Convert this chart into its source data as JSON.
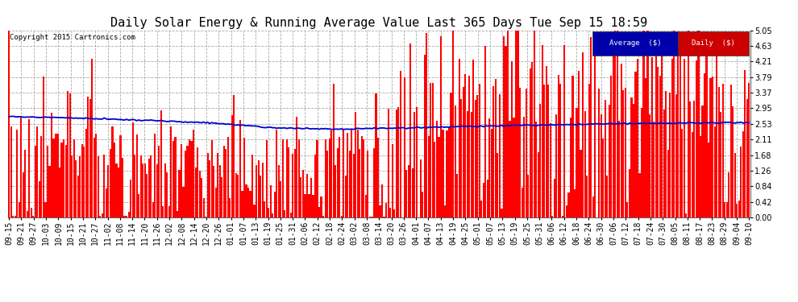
{
  "title": "Daily Solar Energy & Running Average Value Last 365 Days Tue Sep 15 18:59",
  "copyright": "Copyright 2015 Cartronics.com",
  "legend_avg": "Average  ($)",
  "legend_daily": "Daily  ($)",
  "ylim": [
    0.0,
    5.05
  ],
  "yticks": [
    0.0,
    0.42,
    0.84,
    1.26,
    1.68,
    2.11,
    2.53,
    2.95,
    3.37,
    3.79,
    4.21,
    4.63,
    5.05
  ],
  "bar_color": "#ff0000",
  "avg_line_color": "#0000cd",
  "bg_color": "#ffffff",
  "grid_color": "#aaaaaa",
  "title_fontsize": 11,
  "tick_fontsize": 7,
  "num_days": 366,
  "seed": 99,
  "avg_control_x": [
    0,
    20,
    50,
    100,
    130,
    160,
    200,
    250,
    300,
    365
  ],
  "avg_control_y": [
    2.72,
    2.7,
    2.65,
    2.55,
    2.42,
    2.38,
    2.42,
    2.48,
    2.53,
    2.56
  ],
  "seasonal_mean_x": [
    0,
    30,
    60,
    90,
    120,
    150,
    180,
    210,
    240,
    270,
    300,
    330,
    365
  ],
  "seasonal_mean_y": [
    2.5,
    2.3,
    1.8,
    1.5,
    1.4,
    1.6,
    2.2,
    2.8,
    3.2,
    3.4,
    3.5,
    3.3,
    2.9
  ],
  "xtick_labels": [
    "09-15",
    "09-21",
    "09-27",
    "10-03",
    "10-09",
    "10-15",
    "10-21",
    "10-27",
    "11-02",
    "11-08",
    "11-14",
    "11-20",
    "11-26",
    "12-02",
    "12-08",
    "12-14",
    "12-20",
    "12-26",
    "01-01",
    "01-07",
    "01-13",
    "01-19",
    "01-25",
    "01-31",
    "02-06",
    "02-12",
    "02-18",
    "02-24",
    "03-02",
    "03-08",
    "03-14",
    "03-20",
    "03-26",
    "04-01",
    "04-07",
    "04-13",
    "04-19",
    "04-25",
    "05-01",
    "05-07",
    "05-13",
    "05-19",
    "05-25",
    "05-31",
    "06-06",
    "06-12",
    "06-18",
    "06-24",
    "06-30",
    "07-06",
    "07-12",
    "07-18",
    "07-24",
    "07-30",
    "08-05",
    "08-11",
    "08-17",
    "08-23",
    "08-29",
    "09-04",
    "09-10"
  ]
}
